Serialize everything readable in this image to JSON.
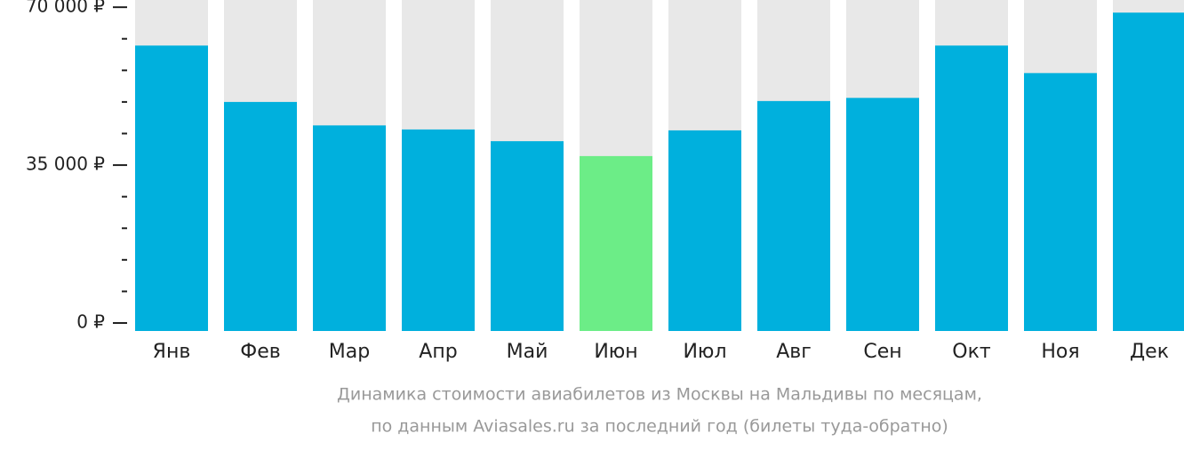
{
  "chart_data": {
    "type": "bar",
    "categories": [
      "Янв",
      "Фев",
      "Мар",
      "Апр",
      "Май",
      "Июн",
      "Июл",
      "Авг",
      "Сен",
      "Окт",
      "Ноя",
      "Дек"
    ],
    "values": [
      61500,
      49000,
      43800,
      42900,
      40300,
      37000,
      42700,
      49200,
      49900,
      61500,
      55400,
      68800
    ],
    "colors": [
      "#00b0dd",
      "#00b0dd",
      "#00b0dd",
      "#00b0dd",
      "#00b0dd",
      "#6ced87",
      "#00b0dd",
      "#00b0dd",
      "#00b0dd",
      "#00b0dd",
      "#00b0dd",
      "#00b0dd"
    ],
    "background_color": "#e8e8e8",
    "ylim": [
      0,
      71600
    ],
    "yticks": [
      {
        "value": 0,
        "label": "0 ₽"
      },
      {
        "value": 35000,
        "label": "35 000 ₽"
      },
      {
        "value": 70000,
        "label": "70 000 ₽"
      }
    ],
    "minor_yticks": [
      7000,
      14000,
      21000,
      28000,
      42000,
      49000,
      56000,
      63000
    ],
    "caption": [
      "Динамика стоимости авиабилетов из Москвы на Мальдивы по месяцам,",
      "по данным Aviasales.ru за последний год (билеты туда-обратно)"
    ]
  }
}
